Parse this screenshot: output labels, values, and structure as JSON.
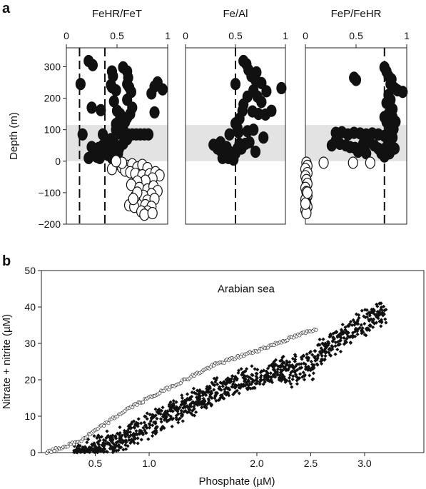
{
  "panels": {
    "a_label": "a",
    "b_label": "b"
  },
  "chart_data": [
    {
      "type": "scatter",
      "title": "FeHR/FeT",
      "xlabel": "",
      "ylabel": "Depth (m)",
      "xlim": [
        0,
        1
      ],
      "ylim": [
        -200,
        360
      ],
      "x_ticks": [
        0,
        0.5,
        1
      ],
      "x_tick_labels": [
        "0",
        "0.5",
        "1"
      ],
      "y_ticks": [
        -200,
        -100,
        0,
        100,
        200,
        300
      ],
      "y_tick_labels": [
        "−200",
        "−100",
        "0",
        "100",
        "200",
        "300"
      ],
      "shaded_band": [
        0,
        115
      ],
      "reference_lines_x": [
        0.13,
        0.38
      ],
      "series": [
        {
          "fill": "#111111",
          "values": [
            [
              0.14,
              245
            ],
            [
              0.22,
              318
            ],
            [
              0.26,
              305
            ],
            [
              0.44,
              242
            ],
            [
              0.45,
              235
            ],
            [
              0.49,
              225
            ],
            [
              0.45,
              285
            ],
            [
              0.46,
              270
            ],
            [
              0.56,
              298
            ],
            [
              0.6,
              285
            ],
            [
              0.61,
              265
            ],
            [
              0.6,
              245
            ],
            [
              0.62,
              235
            ],
            [
              0.64,
              220
            ],
            [
              0.9,
              250
            ],
            [
              0.87,
              237
            ],
            [
              0.95,
              228
            ],
            [
              0.84,
              215
            ],
            [
              0.25,
              170
            ],
            [
              0.34,
              162
            ],
            [
              0.47,
              190
            ],
            [
              0.5,
              160
            ],
            [
              0.53,
              150
            ],
            [
              0.53,
              135
            ],
            [
              0.49,
              118
            ],
            [
              0.56,
              112
            ],
            [
              0.58,
              125
            ],
            [
              0.6,
              138
            ],
            [
              0.63,
              150
            ],
            [
              0.87,
              155
            ],
            [
              0.65,
              170
            ],
            [
              0.6,
              195
            ],
            [
              0.49,
              100
            ],
            [
              0.53,
              88
            ],
            [
              0.57,
              85
            ],
            [
              0.61,
              85
            ],
            [
              0.65,
              85
            ],
            [
              0.69,
              85
            ],
            [
              0.73,
              85
            ],
            [
              0.77,
              85
            ],
            [
              0.81,
              85
            ],
            [
              0.6,
              70
            ],
            [
              0.56,
              55
            ],
            [
              0.52,
              40
            ],
            [
              0.16,
              85
            ],
            [
              0.36,
              85
            ],
            [
              0.44,
              70
            ],
            [
              0.46,
              55
            ],
            [
              0.43,
              40
            ],
            [
              0.38,
              30
            ],
            [
              0.34,
              20
            ],
            [
              0.3,
              14
            ],
            [
              0.22,
              10
            ],
            [
              0.26,
              20
            ],
            [
              0.29,
              30
            ],
            [
              0.32,
              42
            ],
            [
              0.36,
              50
            ],
            [
              0.41,
              20
            ],
            [
              0.45,
              10
            ],
            [
              0.47,
              60
            ],
            [
              0.39,
              60
            ],
            [
              0.25,
              45
            ],
            [
              0.33,
              10
            ],
            [
              0.51,
              25
            ]
          ]
        },
        {
          "fill": "#ffffff",
          "values": [
            [
              0.52,
              -10
            ],
            [
              0.55,
              -20
            ],
            [
              0.6,
              -15
            ],
            [
              0.65,
              -10
            ],
            [
              0.7,
              -20
            ],
            [
              0.75,
              -12
            ],
            [
              0.8,
              -22
            ],
            [
              0.58,
              -30
            ],
            [
              0.63,
              -35
            ],
            [
              0.68,
              -40
            ],
            [
              0.75,
              -45
            ],
            [
              0.82,
              -42
            ],
            [
              0.88,
              -35
            ],
            [
              0.92,
              -45
            ],
            [
              0.85,
              -55
            ],
            [
              0.78,
              -62
            ],
            [
              0.7,
              -65
            ],
            [
              0.64,
              -75
            ],
            [
              0.72,
              -85
            ],
            [
              0.8,
              -90
            ],
            [
              0.86,
              -80
            ],
            [
              0.9,
              -95
            ],
            [
              0.84,
              -105
            ],
            [
              0.76,
              -110
            ],
            [
              0.68,
              -112
            ],
            [
              0.8,
              -125
            ],
            [
              0.87,
              -120
            ],
            [
              0.62,
              -140
            ],
            [
              0.67,
              -145
            ],
            [
              0.78,
              -140
            ],
            [
              0.84,
              -145
            ],
            [
              0.8,
              -160
            ],
            [
              0.74,
              -160
            ],
            [
              0.77,
              -170
            ],
            [
              0.85,
              -165
            ],
            [
              0.7,
              -100
            ],
            [
              0.66,
              -120
            ],
            [
              0.55,
              -5
            ],
            [
              0.45,
              -25
            ],
            [
              0.49,
              0
            ]
          ]
        }
      ]
    },
    {
      "type": "scatter",
      "title": "Fe/Al",
      "xlabel": "",
      "ylabel": "",
      "xlim": [
        0,
        1
      ],
      "ylim": [
        -200,
        360
      ],
      "x_ticks": [
        0,
        0.5,
        1
      ],
      "x_tick_labels": [
        "0",
        "0.5",
        "1"
      ],
      "shaded_band": [
        0,
        115
      ],
      "reference_lines_x": [
        0.5
      ],
      "series": [
        {
          "fill": "#111111",
          "values": [
            [
              0.5,
              245
            ],
            [
              0.58,
              318
            ],
            [
              0.61,
              308
            ],
            [
              0.63,
              290
            ],
            [
              0.71,
              282
            ],
            [
              0.66,
              270
            ],
            [
              0.7,
              258
            ],
            [
              0.76,
              248
            ],
            [
              0.96,
              232
            ],
            [
              0.68,
              225
            ],
            [
              0.81,
              222
            ],
            [
              0.62,
              205
            ],
            [
              0.72,
              205
            ],
            [
              0.76,
              188
            ],
            [
              0.58,
              180
            ],
            [
              0.86,
              160
            ],
            [
              0.67,
              158
            ],
            [
              0.57,
              160
            ],
            [
              0.73,
              150
            ],
            [
              0.8,
              148
            ],
            [
              0.54,
              135
            ],
            [
              0.5,
              120
            ],
            [
              0.52,
              105
            ],
            [
              0.44,
              85
            ],
            [
              0.53,
              92
            ],
            [
              0.62,
              95
            ],
            [
              0.68,
              100
            ],
            [
              0.28,
              52
            ],
            [
              0.32,
              40
            ],
            [
              0.36,
              30
            ],
            [
              0.37,
              10
            ],
            [
              0.43,
              10
            ],
            [
              0.46,
              20
            ],
            [
              0.5,
              25
            ],
            [
              0.52,
              40
            ],
            [
              0.54,
              55
            ],
            [
              0.56,
              40
            ],
            [
              0.6,
              55
            ],
            [
              0.64,
              60
            ],
            [
              0.7,
              30
            ],
            [
              0.78,
              75
            ],
            [
              0.48,
              5
            ],
            [
              0.41,
              45
            ],
            [
              0.35,
              60
            ],
            [
              0.44,
              30
            ]
          ]
        }
      ]
    },
    {
      "type": "scatter",
      "title": "FeP/FeHR",
      "xlabel": "",
      "ylabel": "",
      "xlim": [
        0,
        1
      ],
      "ylim": [
        -200,
        360
      ],
      "x_ticks": [
        0,
        0.5,
        1
      ],
      "x_tick_labels": [
        "0",
        "0.5",
        "1"
      ],
      "shaded_band": [
        0,
        115
      ],
      "reference_lines_x": [
        0.78
      ],
      "series": [
        {
          "fill": "#111111",
          "values": [
            [
              0.48,
              265
            ],
            [
              0.5,
              258
            ],
            [
              0.78,
              298
            ],
            [
              0.8,
              285
            ],
            [
              0.82,
              270
            ],
            [
              0.85,
              260
            ],
            [
              0.84,
              245
            ],
            [
              0.88,
              232
            ],
            [
              0.91,
              225
            ],
            [
              0.96,
              220
            ],
            [
              0.82,
              210
            ],
            [
              0.84,
              195
            ],
            [
              0.8,
              185
            ],
            [
              0.86,
              165
            ],
            [
              0.82,
              150
            ],
            [
              0.78,
              140
            ],
            [
              0.8,
              125
            ],
            [
              0.84,
              115
            ],
            [
              0.87,
              102
            ],
            [
              0.82,
              90
            ],
            [
              0.78,
              80
            ],
            [
              0.86,
              75
            ],
            [
              0.84,
              60
            ],
            [
              0.8,
              45
            ],
            [
              0.88,
              40
            ],
            [
              0.83,
              25
            ],
            [
              0.78,
              15
            ],
            [
              0.3,
              90
            ],
            [
              0.36,
              92
            ],
            [
              0.42,
              85
            ],
            [
              0.48,
              90
            ],
            [
              0.54,
              88
            ],
            [
              0.6,
              85
            ],
            [
              0.66,
              88
            ],
            [
              0.72,
              85
            ],
            [
              0.3,
              65
            ],
            [
              0.34,
              55
            ],
            [
              0.4,
              50
            ],
            [
              0.44,
              45
            ],
            [
              0.49,
              42
            ],
            [
              0.52,
              30
            ],
            [
              0.57,
              55
            ],
            [
              0.63,
              60
            ],
            [
              0.68,
              50
            ],
            [
              0.72,
              40
            ],
            [
              0.75,
              25
            ],
            [
              0.6,
              25
            ],
            [
              0.26,
              50
            ],
            [
              0.89,
              125
            ],
            [
              0.86,
              140
            ]
          ]
        },
        {
          "fill": "#ffffff",
          "values": [
            [
              0.01,
              -5
            ],
            [
              0.02,
              -15
            ],
            [
              0.0,
              -25
            ],
            [
              0.02,
              -38
            ],
            [
              0.0,
              -48
            ],
            [
              0.01,
              -60
            ],
            [
              0.02,
              -72
            ],
            [
              0.0,
              -85
            ],
            [
              0.01,
              -98
            ],
            [
              0.02,
              -110
            ],
            [
              0.0,
              -122
            ],
            [
              0.01,
              -135
            ],
            [
              0.02,
              -145
            ],
            [
              0.0,
              -155
            ],
            [
              0.01,
              -165
            ],
            [
              0.18,
              -5
            ],
            [
              0.47,
              -5
            ],
            [
              0.64,
              -5
            ],
            [
              0.0,
              -135
            ],
            [
              0.02,
              -100
            ]
          ]
        }
      ]
    },
    {
      "type": "scatter",
      "title": "",
      "annotation": "Arabian sea",
      "xlabel": "Phosphate (µM)",
      "ylabel": "Nitrate + nitrite (µM)",
      "xlim": [
        0.0,
        3.55
      ],
      "ylim": [
        0,
        50
      ],
      "x_ticks": [
        0.5,
        1.0,
        2.0,
        2.5,
        3.0
      ],
      "x_tick_labels": [
        "0.5",
        "1.0",
        "2.0",
        "2.5",
        "3.0"
      ],
      "y_ticks": [
        0,
        10,
        20,
        30,
        40,
        50
      ],
      "y_tick_labels": [
        "0",
        "10",
        "20",
        "30",
        "40",
        "50"
      ],
      "series": [
        {
          "marker": "open-circle",
          "x_range": [
            0.05,
            2.55
          ],
          "count": 180,
          "trend": [
            [
              0.05,
              0
            ],
            [
              0.35,
              3
            ],
            [
              0.8,
              12
            ],
            [
              1.2,
              18
            ],
            [
              1.6,
              24
            ],
            [
              2.0,
              28
            ],
            [
              2.55,
              34
            ]
          ]
        },
        {
          "marker": "filled-diamond",
          "x_range": [
            0.3,
            3.2
          ],
          "count": 1100,
          "trend": [
            [
              0.3,
              0
            ],
            [
              0.5,
              2
            ],
            [
              0.8,
              6
            ],
            [
              1.2,
              12
            ],
            [
              1.6,
              18
            ],
            [
              2.0,
              22
            ],
            [
              2.3,
              25
            ],
            [
              2.5,
              27
            ],
            [
              2.8,
              33
            ],
            [
              3.1,
              39
            ],
            [
              3.2,
              39
            ]
          ]
        }
      ]
    }
  ]
}
